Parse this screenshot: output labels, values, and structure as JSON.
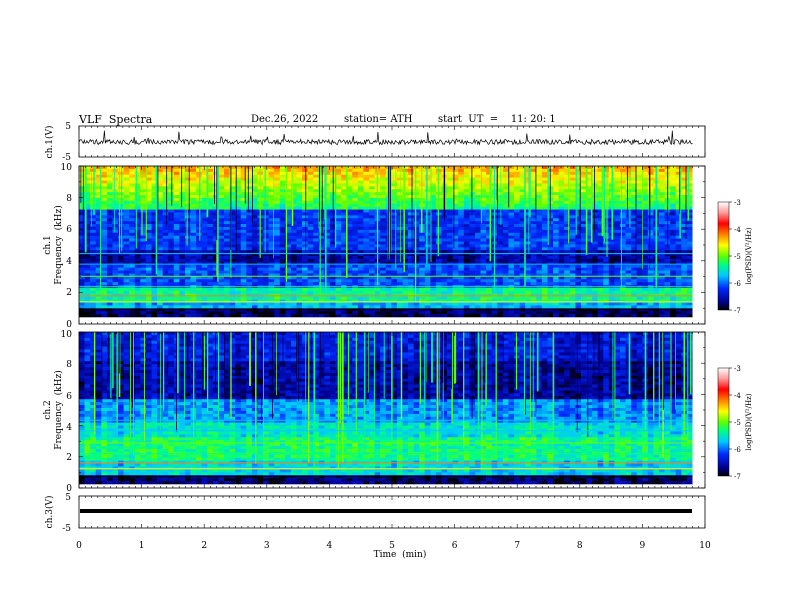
{
  "header": {
    "title": "VLF  Spectra",
    "date": "Dec.26, 2022",
    "station": "station= ATH",
    "start": "start  UT  =    11: 20: 1"
  },
  "chart_data": [
    {
      "type": "line",
      "panel": "ch1-waveform",
      "title": "",
      "xlabel": "",
      "ylabel": "ch.1(V)",
      "ylim": [
        -5,
        5
      ],
      "yticks": [
        5,
        -5
      ],
      "xlim": [
        0,
        10
      ],
      "series": [
        {
          "values_summary": "noisy waveform near 0 V, excursions to about +1.5 V"
        }
      ]
    },
    {
      "type": "heatmap",
      "panel": "ch1-spectrogram",
      "ylabel": "ch.1 Frequency (kHz)",
      "ylim": [
        0,
        10
      ],
      "yticks": [
        0,
        2,
        4,
        6,
        8,
        10
      ],
      "xlim": [
        0,
        9.8
      ],
      "colorbar": {
        "label": "log(PSD)(V²/Hz)",
        "range": [
          -7,
          -3
        ],
        "ticks": [
          -3,
          -4,
          -5,
          -6,
          -7
        ],
        "colors": [
          "#000000",
          "#000090",
          "#0028ff",
          "#00c8ff",
          "#00ff80",
          "#60ff00",
          "#ffff00",
          "#ff8000",
          "#ff0000",
          "#ff9999",
          "#ffffff"
        ]
      }
    },
    {
      "type": "heatmap",
      "panel": "ch2-spectrogram",
      "ylabel": "ch.2 Frequency (kHz)",
      "ylim": [
        0,
        10
      ],
      "yticks": [
        0,
        2,
        4,
        6,
        8,
        10
      ],
      "xlim": [
        0,
        9.8
      ],
      "colorbar": {
        "label": "log(PSD)(V²/Hz)",
        "range": [
          -7,
          -3
        ],
        "ticks": [
          -3,
          -4,
          -5,
          -6,
          -7
        ]
      }
    },
    {
      "type": "line",
      "panel": "ch3-waveform",
      "ylabel": "ch.3(V)",
      "ylim": [
        -5,
        5
      ],
      "yticks": [
        5,
        -5
      ],
      "xlim": [
        0,
        10
      ],
      "xticks": [
        0,
        1,
        2,
        3,
        4,
        5,
        6,
        7,
        8,
        9,
        10
      ],
      "xlabel": "Time  (min)",
      "series": [
        {
          "values_summary": "flat line at about -1.5 V"
        }
      ]
    }
  ],
  "labels": {
    "ch1_ylabel_a": "ch.1(V)",
    "ch1_spec_ylabel": "ch.1",
    "freq_ylabel": "Frequency  (kHz)",
    "ch2_spec_ylabel": "ch.2",
    "ch3_ylabel": "ch.3(V)",
    "xlabel": "Time  (min)",
    "cbar_label": "log(PSD)(V²/Hz)"
  },
  "ticks": {
    "wave": [
      "5",
      "-5"
    ],
    "freq": [
      "0",
      "2",
      "4",
      "6",
      "8",
      "10"
    ],
    "cbar": [
      "-3",
      "-4",
      "-5",
      "-6",
      "-7"
    ],
    "time": [
      "0",
      "1",
      "2",
      "3",
      "4",
      "5",
      "6",
      "7",
      "8",
      "9",
      "10"
    ]
  }
}
